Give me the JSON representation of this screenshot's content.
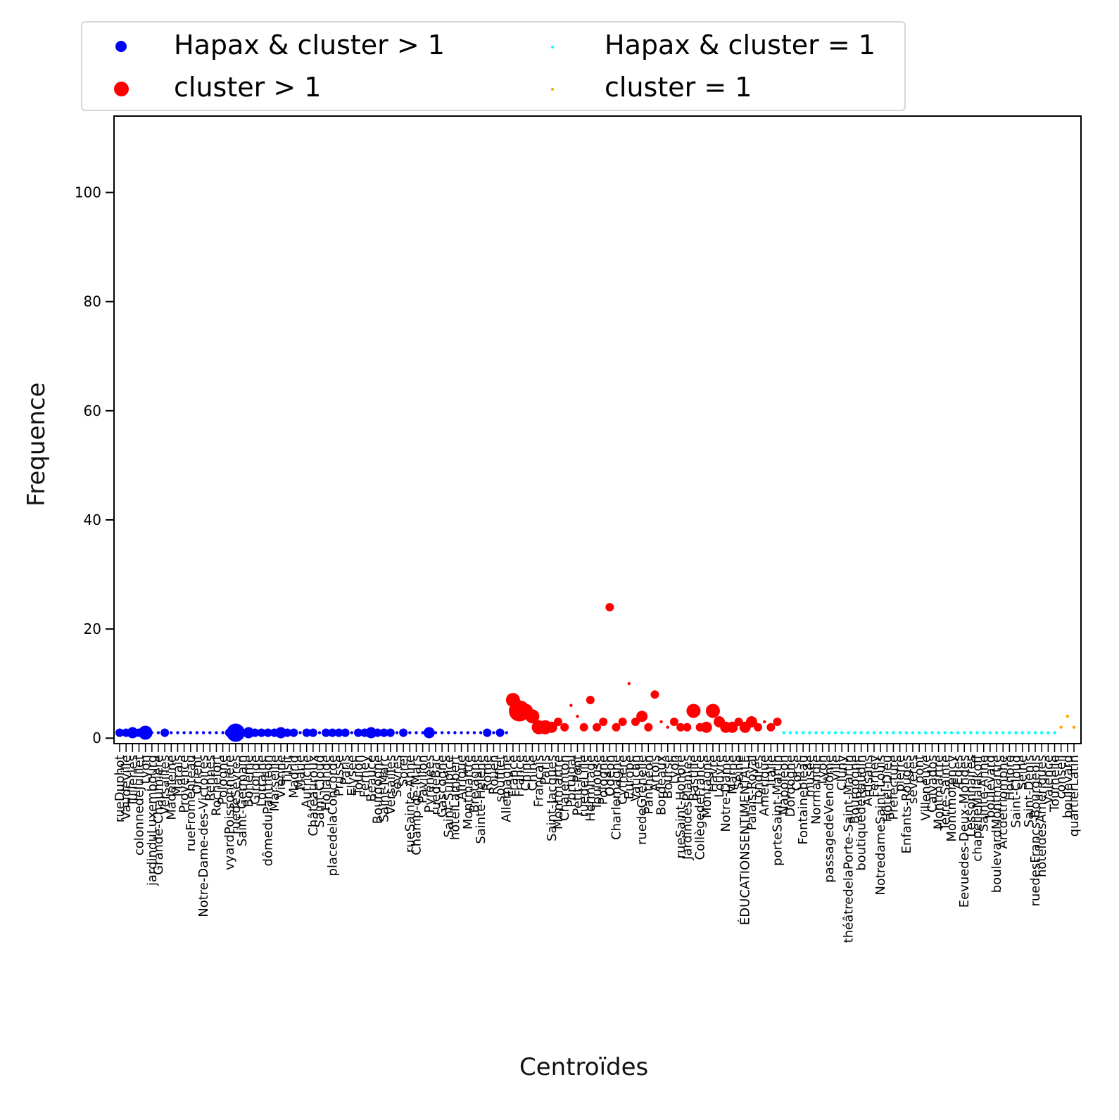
{
  "chart_data": {
    "type": "scatter",
    "xlabel": "Centroïdes",
    "ylabel": "Frequence",
    "ylim": [
      -1,
      114
    ],
    "yticks": [
      0,
      20,
      40,
      60,
      80,
      100
    ],
    "grid": false,
    "legend_position": "top, outside the axes, 2 columns",
    "series": [
      {
        "name": "Hapax & cluster > 1",
        "color": "#0000ff",
        "categories": [
          "rueDuphot",
          "Vaudeville",
          "Tuileries",
          "colonnedeJuillet",
          "Lyon",
          "jardinduLuxembourg",
          "Grande-Chaumière",
          "Versailles",
          "Madeleine",
          "Marais",
          "Provence",
          "rueFromenteau",
          "Orient",
          "Notre-Dame-des-Victoires",
          "Rennes",
          "Rochefort",
          "Pologne",
          "vyardPoissonnière",
          "ruedeSèvres",
          "Saint-Germain",
          "Bohème",
          "Gironde",
          "Lorraine",
          "dômeduPanthéon",
          "Marseille",
          "Vienne",
          "Tilsit",
          "Madrid",
          "Marie",
          "Autriche",
          "Châteauroux",
          "Saint-Cloud",
          "Hollande",
          "placedelaConcorde",
          "Prusse",
          "Paris",
          "Elysée",
          "Toulon",
          "Ferney",
          "Beauce",
          "Bourgogne",
          "Saint-Marc",
          "Versailles",
          "Sèvres",
          "Sorel",
          "rueSainte-Anne",
          "Champ-de-Mars",
          "Pavillon",
          "Pyrénées",
          "ruedeBac",
          "Gascogne",
          "Saint-Sulpice",
          "hôtelLambert",
          "Afrique",
          "Montmartre",
          "Bretagne",
          "Sainte-Hélène",
          "Rome",
          "Rouen",
          "soufflet",
          "Allemagne"
        ],
        "x_index": [
          0,
          1,
          2,
          3,
          4,
          5,
          6,
          7,
          8,
          9,
          10,
          11,
          12,
          13,
          14,
          15,
          16,
          17,
          18,
          19,
          20,
          21,
          22,
          23,
          24,
          25,
          26,
          27,
          28,
          29,
          30,
          31,
          32,
          33,
          34,
          35,
          36,
          37,
          38,
          39,
          40,
          41,
          42,
          43,
          44,
          45,
          46,
          47,
          48,
          49,
          50,
          51,
          52,
          53,
          54,
          55,
          56,
          57,
          58,
          59,
          60
        ],
        "y": [
          1,
          1,
          1,
          1,
          1,
          1,
          1,
          1,
          1,
          1,
          1,
          1,
          1,
          1,
          1,
          1,
          1,
          1,
          1,
          1,
          1,
          1,
          1,
          1,
          1,
          1,
          1,
          1,
          1,
          1,
          1,
          1,
          1,
          1,
          1,
          1,
          1,
          1,
          1,
          1,
          1,
          1,
          1,
          1,
          1,
          1,
          1,
          1,
          1,
          1,
          1,
          1,
          1,
          1,
          1,
          1,
          1,
          1,
          1,
          1,
          1
        ],
        "size": [
          2,
          2,
          3,
          2,
          4,
          1,
          1,
          2,
          1,
          1,
          1,
          1,
          1,
          1,
          1,
          1,
          1,
          2,
          5,
          2,
          3,
          2,
          2,
          2,
          2,
          3,
          2,
          2,
          1,
          2,
          2,
          1,
          2,
          2,
          2,
          2,
          1,
          2,
          2,
          3,
          2,
          2,
          2,
          1,
          2,
          1,
          1,
          1,
          3,
          1,
          1,
          1,
          1,
          1,
          1,
          1,
          1,
          2,
          1,
          2,
          1
        ]
      },
      {
        "name": "cluster > 1",
        "color": "#ff0000",
        "categories": [
          "France",
          "France",
          "Chine",
          "Chine",
          "Français",
          "Paris",
          "Saint-Jacques",
          "Montmartre",
          "Charenton",
          "Portugal",
          "Petit-Pont",
          "ruedeLille",
          "Hermitage",
          "Toulouse",
          "Pologne",
          "Odéon",
          "Charlemagne",
          "Cythère",
          "Europe",
          "Vatican",
          "ruedeGrenelle",
          "Panthéon",
          "Artois",
          "Bordeaux",
          "Bourse",
          "Lyon",
          "rueSaint-Honoré",
          "JardindesPlantes",
          "Bastille",
          "CollègedeFrance",
          "Montagne",
          "Havre",
          "Louvre",
          "Notre-Dame",
          "Marne",
          "Seine",
          "ÉDUCATIONSENTIMENTALE",
          "Palais-Royal",
          "Londres",
          "Amérique",
          "Italie",
          "porteSaint-Martin"
        ],
        "x_index": [
          61,
          62,
          63,
          64,
          65,
          66,
          67,
          68,
          69,
          70,
          71,
          72,
          73,
          74,
          75,
          76,
          77,
          78,
          79,
          80,
          81,
          82,
          83,
          84,
          85,
          86,
          87,
          88,
          89,
          90,
          91,
          92,
          93,
          94,
          95,
          96,
          97,
          98,
          99,
          100,
          101,
          102
        ],
        "y": [
          7,
          5,
          5,
          4,
          2,
          2,
          2,
          3,
          2,
          6,
          4,
          2,
          7,
          2,
          3,
          24,
          2,
          3,
          10,
          3,
          4,
          2,
          8,
          3,
          2,
          3,
          2,
          2,
          5,
          2,
          2,
          5,
          3,
          2,
          2,
          3,
          2,
          3,
          2,
          3,
          2,
          3
        ],
        "size": [
          4,
          6,
          4,
          4,
          4,
          4,
          3,
          2,
          2,
          1,
          1,
          2,
          2,
          2,
          2,
          2,
          2,
          2,
          1,
          2,
          3,
          2,
          2,
          1,
          1,
          2,
          2,
          2,
          4,
          2,
          3,
          4,
          3,
          3,
          3,
          2,
          3,
          3,
          2,
          1,
          2,
          2
        ]
      },
      {
        "name": "Hapax & cluster = 1",
        "color": "#00ffff",
        "categories": [
          "Napoléon",
          "Dordogne",
          "Corse",
          "Fontainebleau",
          "musée",
          "Normandie",
          "Lyon",
          "passagedeVendôme",
          "ville",
          "Cluny",
          "théâtredelaPorte-Saint-Martin",
          "Bourgogne",
          "boutiquedeRaudin",
          "Artisans",
          "Ferney",
          "NotredameSaint-Louis",
          "Hôtel-Dieu",
          "Prefecture",
          "pierre",
          "Enfants-Rouges",
          "sévères",
          "pont",
          "Villeneuve",
          "Calvados",
          "Montmartre",
          "Terre-Sainte",
          "Montmorency",
          "Ædes",
          "Eevuedes-Deux-Mondes",
          "Lessonnaires",
          "chapelleMalakoff",
          "Sainte-Anne",
          "boulevard",
          "boulevardMontmartre",
          "Arcdetriomphe",
          "Honoré",
          "Saint-Cloud",
          "Seine",
          "Saint-Denis",
          "ruedesFrancs-Bourgeois",
          "hôteldesAmériques",
          "Valence",
          "Tournelle"
        ],
        "x_index": [
          103,
          104,
          105,
          106,
          107,
          108,
          109,
          110,
          111,
          112,
          113,
          114,
          115,
          116,
          117,
          118,
          119,
          120,
          121,
          122,
          123,
          124,
          125,
          126,
          127,
          128,
          129,
          130,
          131,
          132,
          133,
          134,
          135,
          136,
          137,
          138,
          139,
          140,
          141,
          142,
          143,
          144,
          145
        ],
        "y": [
          1,
          1,
          1,
          1,
          1,
          1,
          1,
          1,
          1,
          1,
          1,
          1,
          1,
          1,
          1,
          1,
          1,
          1,
          1,
          1,
          1,
          1,
          1,
          1,
          1,
          1,
          1,
          1,
          1,
          1,
          1,
          1,
          1,
          1,
          1,
          1,
          1,
          1,
          1,
          1,
          1,
          1,
          1
        ],
        "size": [
          1,
          1,
          1,
          1,
          1,
          1,
          1,
          1,
          1,
          1,
          1,
          1,
          1,
          1,
          1,
          1,
          1,
          1,
          1,
          1,
          1,
          1,
          1,
          1,
          1,
          1,
          1,
          1,
          1,
          1,
          1,
          1,
          1,
          1,
          1,
          1,
          1,
          1,
          1,
          1,
          1,
          1,
          1
        ]
      },
      {
        "name": "cluster = 1",
        "color": "#ffa500",
        "categories": [
          "conseil",
          "boulevard",
          "quartierLatin"
        ],
        "x_index": [
          146,
          147,
          148
        ],
        "y": [
          2,
          4,
          2
        ],
        "size": [
          1,
          1,
          1
        ]
      }
    ]
  },
  "legend": {
    "entries": [
      {
        "label": "Hapax & cluster > 1",
        "color": "#0000ff"
      },
      {
        "label": "cluster > 1",
        "color": "#ff0000"
      },
      {
        "label": "Hapax & cluster = 1",
        "color": "#00ffff"
      },
      {
        "label": "cluster = 1",
        "color": "#ffa500"
      }
    ]
  }
}
